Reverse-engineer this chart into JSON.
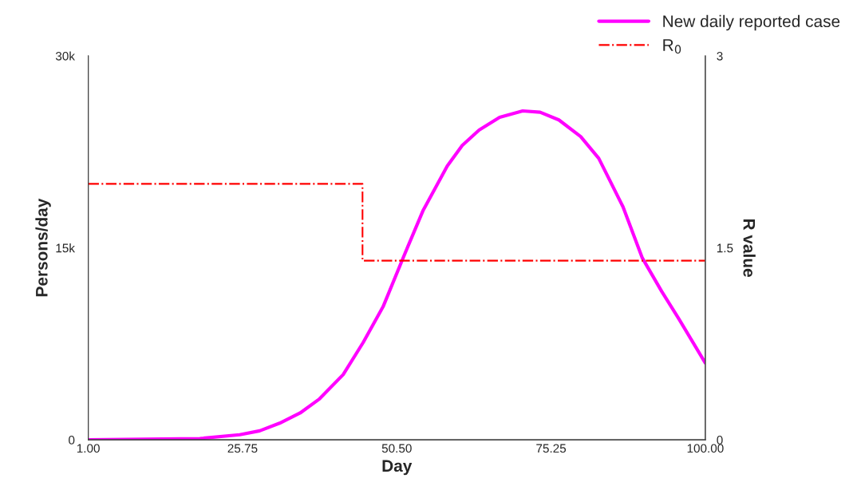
{
  "chart_data": {
    "type": "line",
    "xlabel": "Day",
    "ylabel": "Persons/day",
    "y2label": "R value",
    "xlim": [
      1,
      100
    ],
    "xticks": [
      {
        "value": 1,
        "label": "1.00"
      },
      {
        "value": 25.75,
        "label": "25.75"
      },
      {
        "value": 50.5,
        "label": "50.50"
      },
      {
        "value": 75.25,
        "label": "75.25"
      },
      {
        "value": 100,
        "label": "100.00"
      }
    ],
    "ylim": [
      0,
      30000
    ],
    "yticks": [
      0,
      {
        "value": 15000,
        "label": "15k"
      },
      {
        "value": 30000,
        "label": "30k"
      }
    ],
    "y2lim": [
      0,
      3
    ],
    "y2ticks": [
      0,
      1.5,
      3
    ],
    "legend": "top right",
    "grid": false,
    "series": [
      {
        "name": "New daily reported case",
        "color": "#ff00ff",
        "line_style": "solid",
        "x": [
          1,
          18.9,
          25.3,
          28.5,
          31.7,
          35,
          38.1,
          41.9,
          45.1,
          48.3,
          51.5,
          54.7,
          58.6,
          61,
          63.7,
          67,
          70.7,
          73.5,
          76.5,
          80,
          82.9,
          86.8,
          89.9,
          93,
          95.7,
          100
        ],
        "values": [
          0,
          100,
          400,
          700,
          1300,
          2100,
          3200,
          5100,
          7600,
          10400,
          14200,
          17900,
          21400,
          23000,
          24200,
          25200,
          25700,
          25600,
          25000,
          23700,
          22000,
          18200,
          14200,
          11600,
          9500,
          6000
        ]
      },
      {
        "name": "R$_{0}$",
        "type": "step",
        "axis": "y2",
        "color": "#ff0000",
        "line_style": "dashdot",
        "x": [
          1,
          45,
          100
        ],
        "values": [
          2.0,
          1.4,
          1.4
        ]
      }
    ]
  }
}
